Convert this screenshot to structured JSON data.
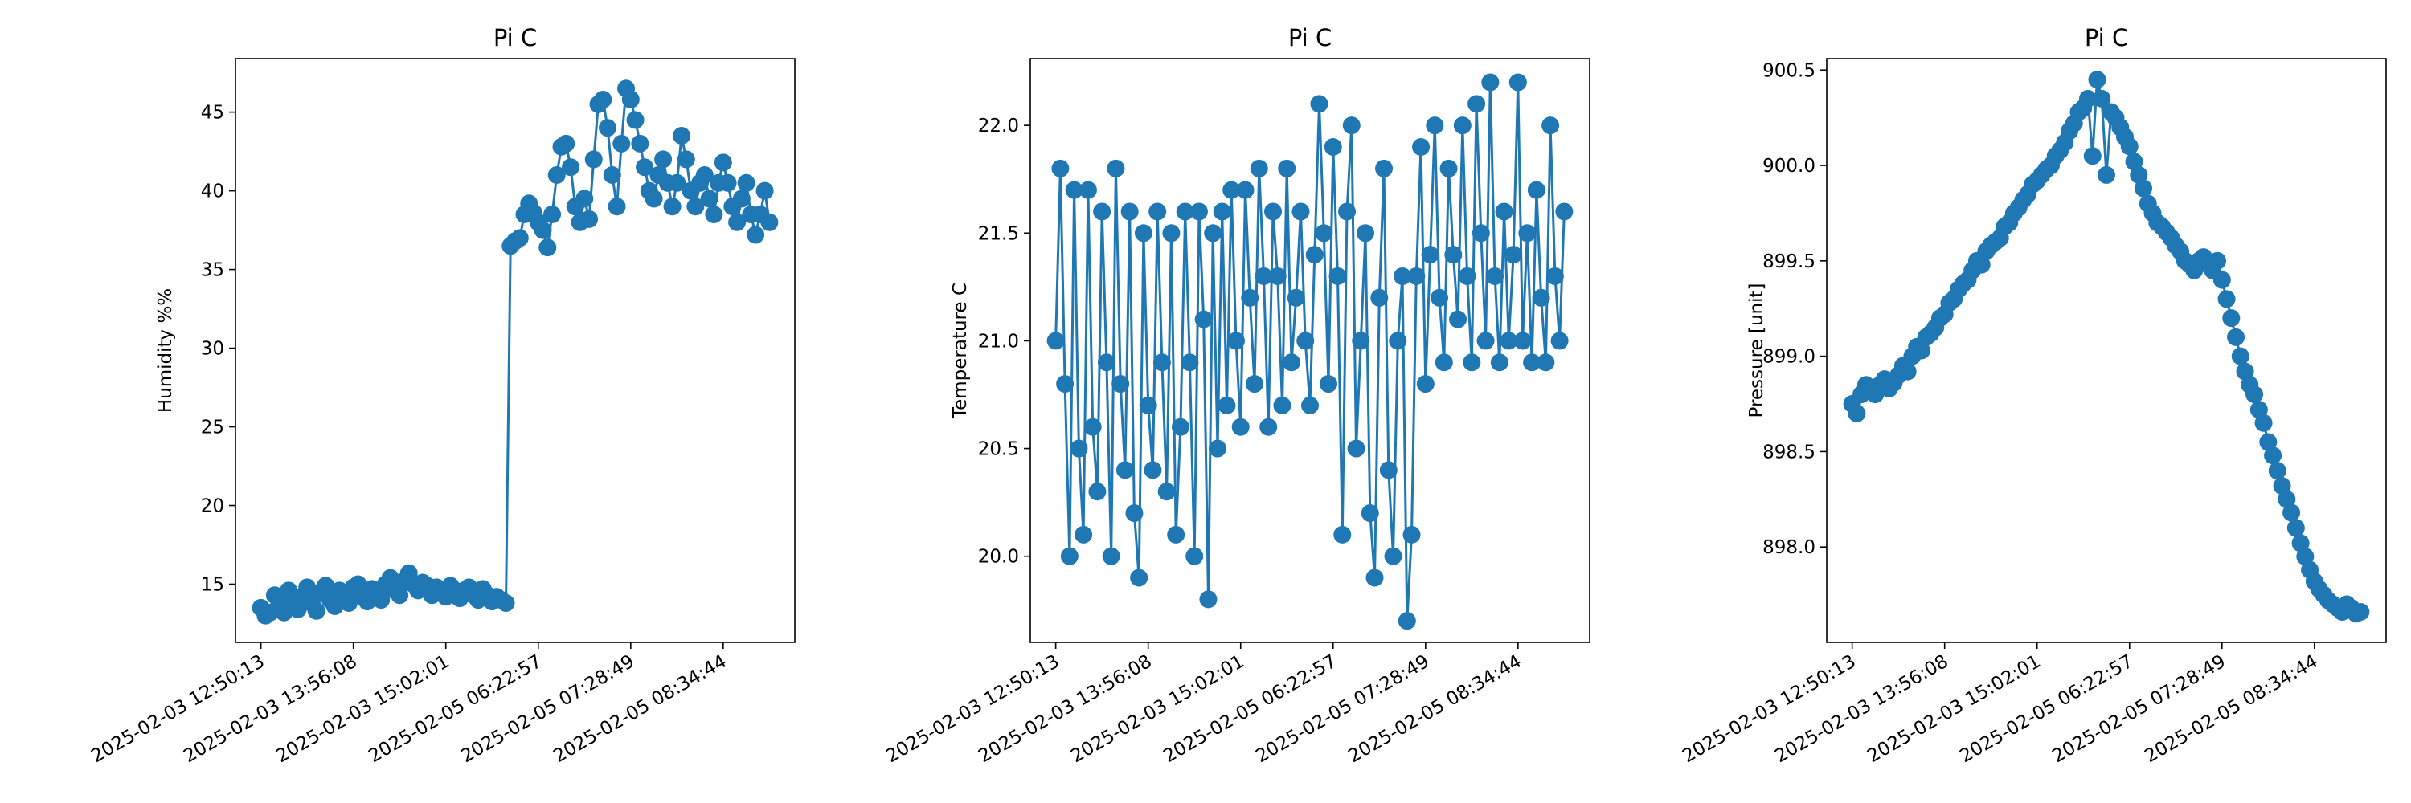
{
  "chart_data": [
    {
      "type": "line",
      "title": "Pi C",
      "y_label": "Humidity %%",
      "color": "#1f77b4",
      "categories": [
        "2025-02-03 12:50:13",
        null,
        null,
        null,
        null,
        null,
        null,
        null,
        null,
        null,
        null,
        null,
        null,
        null,
        null,
        null,
        null,
        null,
        null,
        null,
        "2025-02-03 13:56:08",
        null,
        null,
        null,
        null,
        null,
        null,
        null,
        null,
        null,
        null,
        null,
        null,
        null,
        null,
        null,
        null,
        null,
        null,
        null,
        "2025-02-03 15:02:01",
        null,
        null,
        null,
        null,
        null,
        null,
        null,
        null,
        null,
        null,
        null,
        null,
        null,
        null,
        null,
        null,
        null,
        null,
        null,
        "2025-02-05 06:22:57",
        null,
        null,
        null,
        null,
        null,
        null,
        null,
        null,
        null,
        null,
        null,
        null,
        null,
        null,
        null,
        null,
        null,
        null,
        null,
        "2025-02-05 07:28:49",
        null,
        null,
        null,
        null,
        null,
        null,
        null,
        null,
        null,
        null,
        null,
        null,
        null,
        null,
        null,
        null,
        null,
        null,
        null,
        "2025-02-05 08:34:44",
        null,
        null,
        null,
        null,
        null,
        null,
        null,
        null,
        null,
        null
      ],
      "values": [
        13.5,
        13.0,
        13.2,
        14.3,
        13.8,
        13.2,
        14.6,
        14.0,
        13.4,
        14.2,
        14.8,
        13.8,
        13.3,
        14.5,
        14.9,
        14.0,
        13.6,
        14.6,
        14.3,
        13.8,
        14.8,
        15.0,
        14.2,
        13.9,
        14.7,
        14.4,
        14.0,
        15.0,
        15.4,
        14.6,
        14.3,
        15.2,
        15.7,
        15.0,
        14.6,
        15.1,
        14.9,
        14.3,
        14.8,
        14.5,
        14.2,
        14.9,
        14.6,
        14.1,
        14.6,
        14.8,
        14.3,
        14.0,
        14.7,
        14.3,
        13.9,
        14.2,
        14.0,
        13.8,
        36.5,
        36.8,
        37.0,
        38.5,
        39.2,
        38.6,
        38.0,
        37.5,
        36.4,
        38.5,
        41.0,
        42.8,
        43.0,
        41.5,
        39.0,
        38.0,
        39.5,
        38.2,
        42.0,
        45.5,
        45.8,
        44.0,
        41.0,
        39.0,
        43.0,
        46.5,
        45.8,
        44.5,
        43.0,
        41.5,
        40.0,
        39.5,
        41.0,
        42.0,
        40.5,
        39.0,
        40.5,
        43.5,
        42.0,
        40.0,
        39.0,
        40.5,
        41.0,
        39.5,
        38.5,
        40.5,
        41.8,
        40.5,
        39.0,
        38.0,
        39.5,
        40.5,
        38.5,
        37.2,
        38.5,
        40.0,
        38.0
      ],
      "ylim": [
        11.3,
        48.4
      ],
      "yticks": [
        15,
        20,
        25,
        30,
        35,
        40,
        45
      ]
    },
    {
      "type": "line",
      "title": "Pi C",
      "y_label": "Temperature C",
      "color": "#1f77b4",
      "categories": [
        "2025-02-03 12:50:13",
        null,
        null,
        null,
        null,
        null,
        null,
        null,
        null,
        null,
        null,
        null,
        null,
        null,
        null,
        null,
        null,
        null,
        null,
        null,
        "2025-02-03 13:56:08",
        null,
        null,
        null,
        null,
        null,
        null,
        null,
        null,
        null,
        null,
        null,
        null,
        null,
        null,
        null,
        null,
        null,
        null,
        null,
        "2025-02-03 15:02:01",
        null,
        null,
        null,
        null,
        null,
        null,
        null,
        null,
        null,
        null,
        null,
        null,
        null,
        null,
        null,
        null,
        null,
        null,
        null,
        "2025-02-05 06:22:57",
        null,
        null,
        null,
        null,
        null,
        null,
        null,
        null,
        null,
        null,
        null,
        null,
        null,
        null,
        null,
        null,
        null,
        null,
        null,
        "2025-02-05 07:28:49",
        null,
        null,
        null,
        null,
        null,
        null,
        null,
        null,
        null,
        null,
        null,
        null,
        null,
        null,
        null,
        null,
        null,
        null,
        null,
        "2025-02-05 08:34:44",
        null,
        null,
        null,
        null,
        null,
        null,
        null,
        null,
        null,
        null
      ],
      "values": [
        21.0,
        21.8,
        20.8,
        20.0,
        21.7,
        20.5,
        20.1,
        21.7,
        20.6,
        20.3,
        21.6,
        20.9,
        20.0,
        21.8,
        20.8,
        20.4,
        21.6,
        20.2,
        19.9,
        21.5,
        20.7,
        20.4,
        21.6,
        20.9,
        20.3,
        21.5,
        20.1,
        20.6,
        21.6,
        20.9,
        20.0,
        21.6,
        21.1,
        19.8,
        21.5,
        20.5,
        21.6,
        20.7,
        21.7,
        21.0,
        20.6,
        21.7,
        21.2,
        20.8,
        21.8,
        21.3,
        20.6,
        21.6,
        21.3,
        20.7,
        21.8,
        20.9,
        21.2,
        21.6,
        21.0,
        20.7,
        21.4,
        22.1,
        21.5,
        20.8,
        21.9,
        21.3,
        20.1,
        21.6,
        22.0,
        20.5,
        21.0,
        21.5,
        20.2,
        19.9,
        21.2,
        21.8,
        20.4,
        20.0,
        21.0,
        21.3,
        19.7,
        20.1,
        21.3,
        21.9,
        20.8,
        21.4,
        22.0,
        21.2,
        20.9,
        21.8,
        21.4,
        21.1,
        22.0,
        21.3,
        20.9,
        22.1,
        21.5,
        21.0,
        22.2,
        21.3,
        20.9,
        21.6,
        21.0,
        21.4,
        22.2,
        21.0,
        21.5,
        20.9,
        21.7,
        21.2,
        20.9,
        22.0,
        21.3,
        21.0,
        21.6
      ],
      "ylim": [
        19.6,
        22.31
      ],
      "yticks": [
        {
          "value": 20,
          "label": "20.0"
        },
        20.5,
        {
          "value": 21,
          "label": "21.0"
        },
        21.5,
        {
          "value": 22,
          "label": "22.0"
        }
      ]
    },
    {
      "type": "line",
      "title": "Pi C",
      "y_label": "Pressure [unit]",
      "color": "#1f77b4",
      "categories": [
        "2025-02-03 12:50:13",
        null,
        null,
        null,
        null,
        null,
        null,
        null,
        null,
        null,
        null,
        null,
        null,
        null,
        null,
        null,
        null,
        null,
        null,
        null,
        "2025-02-03 13:56:08",
        null,
        null,
        null,
        null,
        null,
        null,
        null,
        null,
        null,
        null,
        null,
        null,
        null,
        null,
        null,
        null,
        null,
        null,
        null,
        "2025-02-03 15:02:01",
        null,
        null,
        null,
        null,
        null,
        null,
        null,
        null,
        null,
        null,
        null,
        null,
        null,
        null,
        null,
        null,
        null,
        null,
        null,
        "2025-02-05 06:22:57",
        null,
        null,
        null,
        null,
        null,
        null,
        null,
        null,
        null,
        null,
        null,
        null,
        null,
        null,
        null,
        null,
        null,
        null,
        null,
        "2025-02-05 07:28:49",
        null,
        null,
        null,
        null,
        null,
        null,
        null,
        null,
        null,
        null,
        null,
        null,
        null,
        null,
        null,
        null,
        null,
        null,
        null,
        "2025-02-05 08:34:44",
        null,
        null,
        null,
        null,
        null,
        null,
        null,
        null,
        null,
        null
      ],
      "values": [
        898.75,
        898.7,
        898.8,
        898.85,
        898.82,
        898.8,
        898.85,
        898.88,
        898.83,
        898.86,
        898.9,
        898.95,
        898.92,
        899.0,
        899.05,
        899.03,
        899.1,
        899.12,
        899.15,
        899.2,
        899.22,
        899.28,
        899.3,
        899.35,
        899.38,
        899.4,
        899.45,
        899.5,
        899.48,
        899.55,
        899.58,
        899.6,
        899.62,
        899.68,
        899.7,
        899.75,
        899.78,
        899.82,
        899.85,
        899.9,
        899.92,
        899.95,
        899.98,
        900.0,
        900.05,
        900.08,
        900.12,
        900.18,
        900.22,
        900.28,
        900.3,
        900.35,
        900.05,
        900.45,
        900.35,
        899.95,
        900.28,
        900.25,
        900.2,
        900.15,
        900.1,
        900.02,
        899.95,
        899.88,
        899.8,
        899.75,
        899.7,
        899.68,
        899.65,
        899.62,
        899.58,
        899.55,
        899.5,
        899.48,
        899.45,
        899.5,
        899.52,
        899.48,
        899.45,
        899.5,
        899.4,
        899.3,
        899.2,
        899.1,
        899.0,
        898.92,
        898.85,
        898.8,
        898.72,
        898.65,
        898.55,
        898.48,
        898.4,
        898.32,
        898.25,
        898.18,
        898.1,
        898.02,
        897.95,
        897.88,
        897.82,
        897.78,
        897.75,
        897.72,
        897.7,
        897.68,
        897.66,
        897.7,
        897.68,
        897.65,
        897.66
      ],
      "ylim": [
        897.5,
        900.56
      ],
      "yticks": [
        {
          "value": 898,
          "label": "898.0"
        },
        898.5,
        {
          "value": 899,
          "label": "899.0"
        },
        899.5,
        {
          "value": 900,
          "label": "900.0"
        },
        900.5
      ]
    }
  ]
}
